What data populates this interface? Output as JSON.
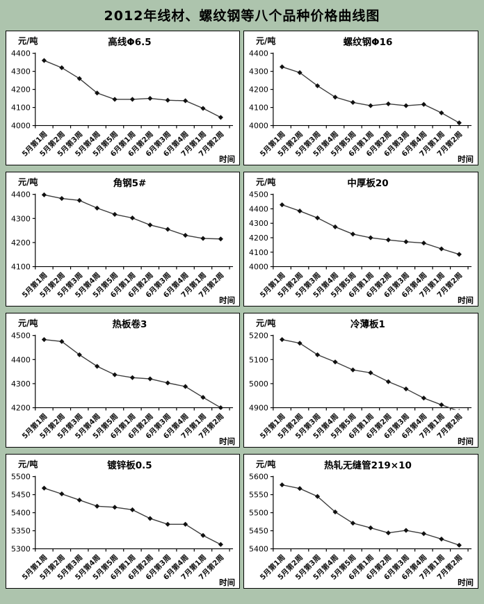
{
  "page": {
    "title": "2012年线材、螺纹钢等八个品种价格曲线图",
    "background_color": "#adc4ad",
    "panel_background": "#ffffff",
    "line_color": "#3c3c3c",
    "marker_color": "#111111",
    "axis_color": "#000000"
  },
  "axis_labels": {
    "unit": "元/吨",
    "time": "时间"
  },
  "chart_data": [
    {
      "type": "line",
      "title": "高线Φ6.5",
      "ylabel": "元/吨",
      "xlabel": "时间",
      "ylim": [
        4000,
        4400
      ],
      "ytick_step": 100,
      "grid": false,
      "legend": "none",
      "categories": [
        "5月第1周",
        "5月第2周",
        "5月第3周",
        "5月第4周",
        "5月第5周",
        "6月第1周",
        "6月第2周",
        "6月第3周",
        "6月第4周",
        "7月第1周",
        "7月第2周"
      ],
      "values": [
        4360,
        4320,
        4260,
        4180,
        4145,
        4145,
        4150,
        4140,
        4137,
        4095,
        4045
      ]
    },
    {
      "type": "line",
      "title": "螺纹钢Φ16",
      "ylabel": "元/吨",
      "xlabel": "时间",
      "ylim": [
        4000,
        4400
      ],
      "ytick_step": 100,
      "grid": false,
      "legend": "none",
      "categories": [
        "5月第1周",
        "5月第2周",
        "5月第3周",
        "5月第4周",
        "5月第5周",
        "6月第1周",
        "6月第2周",
        "6月第3周",
        "6月第4周",
        "7月第1周",
        "7月第2周"
      ],
      "values": [
        4325,
        4293,
        4220,
        4157,
        4128,
        4110,
        4120,
        4110,
        4117,
        4070,
        4015
      ]
    },
    {
      "type": "line",
      "title": "角钢5#",
      "ylabel": "元/吨",
      "xlabel": "时间",
      "ylim": [
        4100,
        4400
      ],
      "ytick_step": 100,
      "grid": false,
      "legend": "none",
      "categories": [
        "5月第1周",
        "5月第2周",
        "5月第3周",
        "5月第4周",
        "5月第5周",
        "6月第1周",
        "6月第2周",
        "6月第3周",
        "6月第4周",
        "7月第1周",
        "7月第2周"
      ],
      "values": [
        4398,
        4383,
        4375,
        4343,
        4317,
        4302,
        4273,
        4255,
        4230,
        4217,
        4215
      ]
    },
    {
      "type": "line",
      "title": "中厚板20",
      "ylabel": "元/吨",
      "xlabel": "时间",
      "ylim": [
        4000,
        4500
      ],
      "ytick_step": 100,
      "grid": false,
      "legend": "none",
      "categories": [
        "5月第1周",
        "5月第2周",
        "5月第3周",
        "5月第4周",
        "5月第5周",
        "6月第1周",
        "6月第2周",
        "6月第3周",
        "6月第4周",
        "7月第1周",
        "7月第2周"
      ],
      "values": [
        4428,
        4385,
        4337,
        4275,
        4225,
        4200,
        4185,
        4172,
        4163,
        4123,
        4085
      ]
    },
    {
      "type": "line",
      "title": "热板卷3",
      "ylabel": "元/吨",
      "xlabel": "时间",
      "ylim": [
        4200,
        4500
      ],
      "ytick_step": 100,
      "grid": false,
      "legend": "none",
      "categories": [
        "5月第1周",
        "5月第2周",
        "5月第3周",
        "5月第4周",
        "5月第5周",
        "6月第1周",
        "6月第2周",
        "6月第3周",
        "6月第4周",
        "7月第1周",
        "7月第2周"
      ],
      "values": [
        4483,
        4475,
        4420,
        4372,
        4337,
        4325,
        4320,
        4303,
        4288,
        4243,
        4200
      ]
    },
    {
      "type": "line",
      "title": "冷薄板1",
      "ylabel": "元/吨",
      "xlabel": "时间",
      "ylim": [
        4900,
        5200
      ],
      "ytick_step": 100,
      "grid": false,
      "legend": "none",
      "categories": [
        "5月第1周",
        "5月第2周",
        "5月第3周",
        "5月第4周",
        "5月第5周",
        "6月第1周",
        "6月第2周",
        "6月第3周",
        "6月第4周",
        "7月第1周",
        "7月第2周"
      ],
      "values": [
        5183,
        5168,
        5120,
        5090,
        5057,
        5045,
        5008,
        4978,
        4940,
        4912,
        4885
      ]
    },
    {
      "type": "line",
      "title": "镀锌板0.5",
      "ylabel": "元/吨",
      "xlabel": "时间",
      "ylim": [
        5300,
        5500
      ],
      "ytick_step": 50,
      "grid": false,
      "legend": "none",
      "categories": [
        "5月第1周",
        "5月第2周",
        "5月第3周",
        "5月第4周",
        "5月第5周",
        "6月第1周",
        "6月第2周",
        "6月第3周",
        "6月第4周",
        "7月第1周",
        "7月第2周"
      ],
      "values": [
        5468,
        5452,
        5435,
        5418,
        5415,
        5408,
        5384,
        5368,
        5368,
        5337,
        5312
      ]
    },
    {
      "type": "line",
      "title": "热轧无缝管219×10",
      "ylabel": "元/吨",
      "xlabel": "时间",
      "ylim": [
        5400,
        5600
      ],
      "ytick_step": 50,
      "grid": false,
      "legend": "none",
      "categories": [
        "5月第1周",
        "5月第2周",
        "5月第3周",
        "5月第4周",
        "5月第5周",
        "6月第1周",
        "6月第2周",
        "6月第3周",
        "6月第4周",
        "7月第1周",
        "7月第2周"
      ],
      "values": [
        5577,
        5567,
        5545,
        5502,
        5471,
        5458,
        5444,
        5451,
        5442,
        5427,
        5410
      ]
    }
  ]
}
